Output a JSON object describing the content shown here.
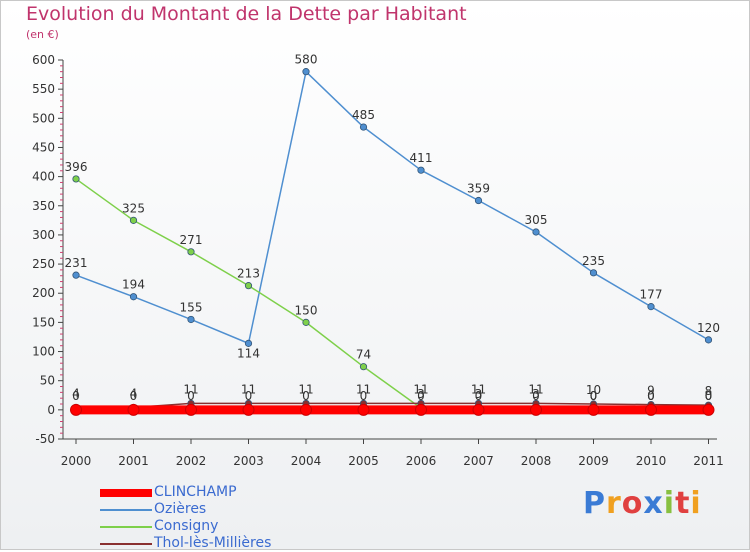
{
  "title": "Evolution du Montant de la Dette par Habitant",
  "subtitle": "(en €)",
  "logo_text": "Proxiti",
  "chart_data": {
    "type": "line",
    "title": "Evolution du Montant de la Dette par Habitant",
    "ylabel": "(en €)",
    "xlabel": "",
    "x": [
      "2000",
      "2001",
      "2002",
      "2003",
      "2004",
      "2005",
      "2006",
      "2007",
      "2008",
      "2009",
      "2010",
      "2011"
    ],
    "ylim": [
      -50,
      600
    ],
    "yticks": [
      -50,
      0,
      50,
      100,
      150,
      200,
      250,
      300,
      350,
      400,
      450,
      500,
      550,
      600
    ],
    "grid": false,
    "legend_position": "bottom-left",
    "series": [
      {
        "name": "CLINCHAMP",
        "color": "#ff0000",
        "values": [
          0,
          0,
          0,
          0,
          0,
          0,
          0,
          0,
          0,
          0,
          0,
          0
        ],
        "labels": [
          "0",
          "0",
          "0",
          "0",
          "0",
          "0",
          "0",
          "0",
          "0",
          "0",
          "0",
          "0"
        ]
      },
      {
        "name": "Ozières",
        "color": "#4f8fd0",
        "values": [
          231,
          194,
          155,
          114,
          580,
          485,
          411,
          359,
          305,
          235,
          177,
          120
        ],
        "labels": [
          "231",
          "194",
          "155",
          "114",
          "580",
          "485",
          "411",
          "359",
          "305",
          "235",
          "177",
          "120"
        ]
      },
      {
        "name": "Consigny",
        "color": "#7ed04a",
        "values": [
          396,
          325,
          271,
          213,
          150,
          74,
          3,
          3,
          3,
          0,
          0,
          0
        ],
        "labels": [
          "396",
          "325",
          "271",
          "213",
          "150",
          "74",
          "3",
          "3",
          "3",
          "0",
          "0",
          "0"
        ]
      },
      {
        "name": "Thol-lès-Millières",
        "color": "#8a3030",
        "values": [
          4,
          4,
          11,
          11,
          11,
          11,
          11,
          11,
          11,
          10,
          9,
          8
        ],
        "labels": [
          "4",
          "4",
          "11",
          "11",
          "11",
          "11",
          "11",
          "11",
          "11",
          "10",
          "9",
          "8"
        ]
      }
    ]
  }
}
